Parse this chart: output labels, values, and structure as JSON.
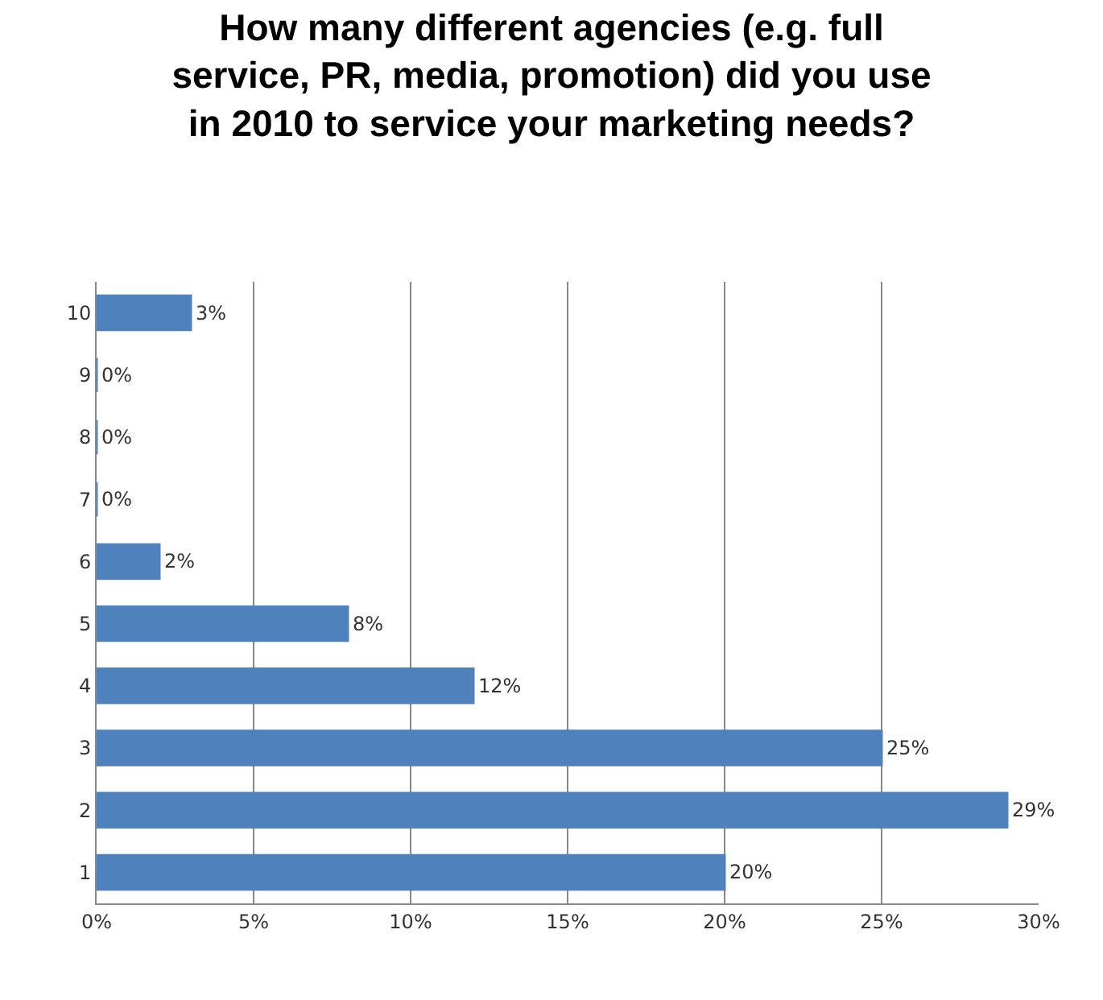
{
  "chart_data": {
    "type": "bar",
    "orientation": "horizontal",
    "title": "How many different agencies (e.g. full service, PR, media, promotion) did you use in 2010 to service your marketing needs?",
    "categories": [
      "10",
      "9",
      "8",
      "7",
      "6",
      "5",
      "4",
      "3",
      "2",
      "1"
    ],
    "values": [
      3,
      0,
      0,
      0,
      2,
      8,
      12,
      25,
      29,
      20
    ],
    "value_labels": [
      "3%",
      "0%",
      "0%",
      "0%",
      "2%",
      "8%",
      "12%",
      "25%",
      "29%",
      "20%"
    ],
    "color": "#4f81bd",
    "xlim": [
      0,
      30
    ],
    "xticks": [
      {
        "value": 0,
        "label": "0%"
      },
      {
        "value": 5,
        "label": "5%"
      },
      {
        "value": 10,
        "label": "10%"
      },
      {
        "value": 15,
        "label": "15%"
      },
      {
        "value": 20,
        "label": "20%"
      },
      {
        "value": 25,
        "label": "25%"
      },
      {
        "value": 30,
        "label": "30%"
      }
    ],
    "grid": "x"
  }
}
